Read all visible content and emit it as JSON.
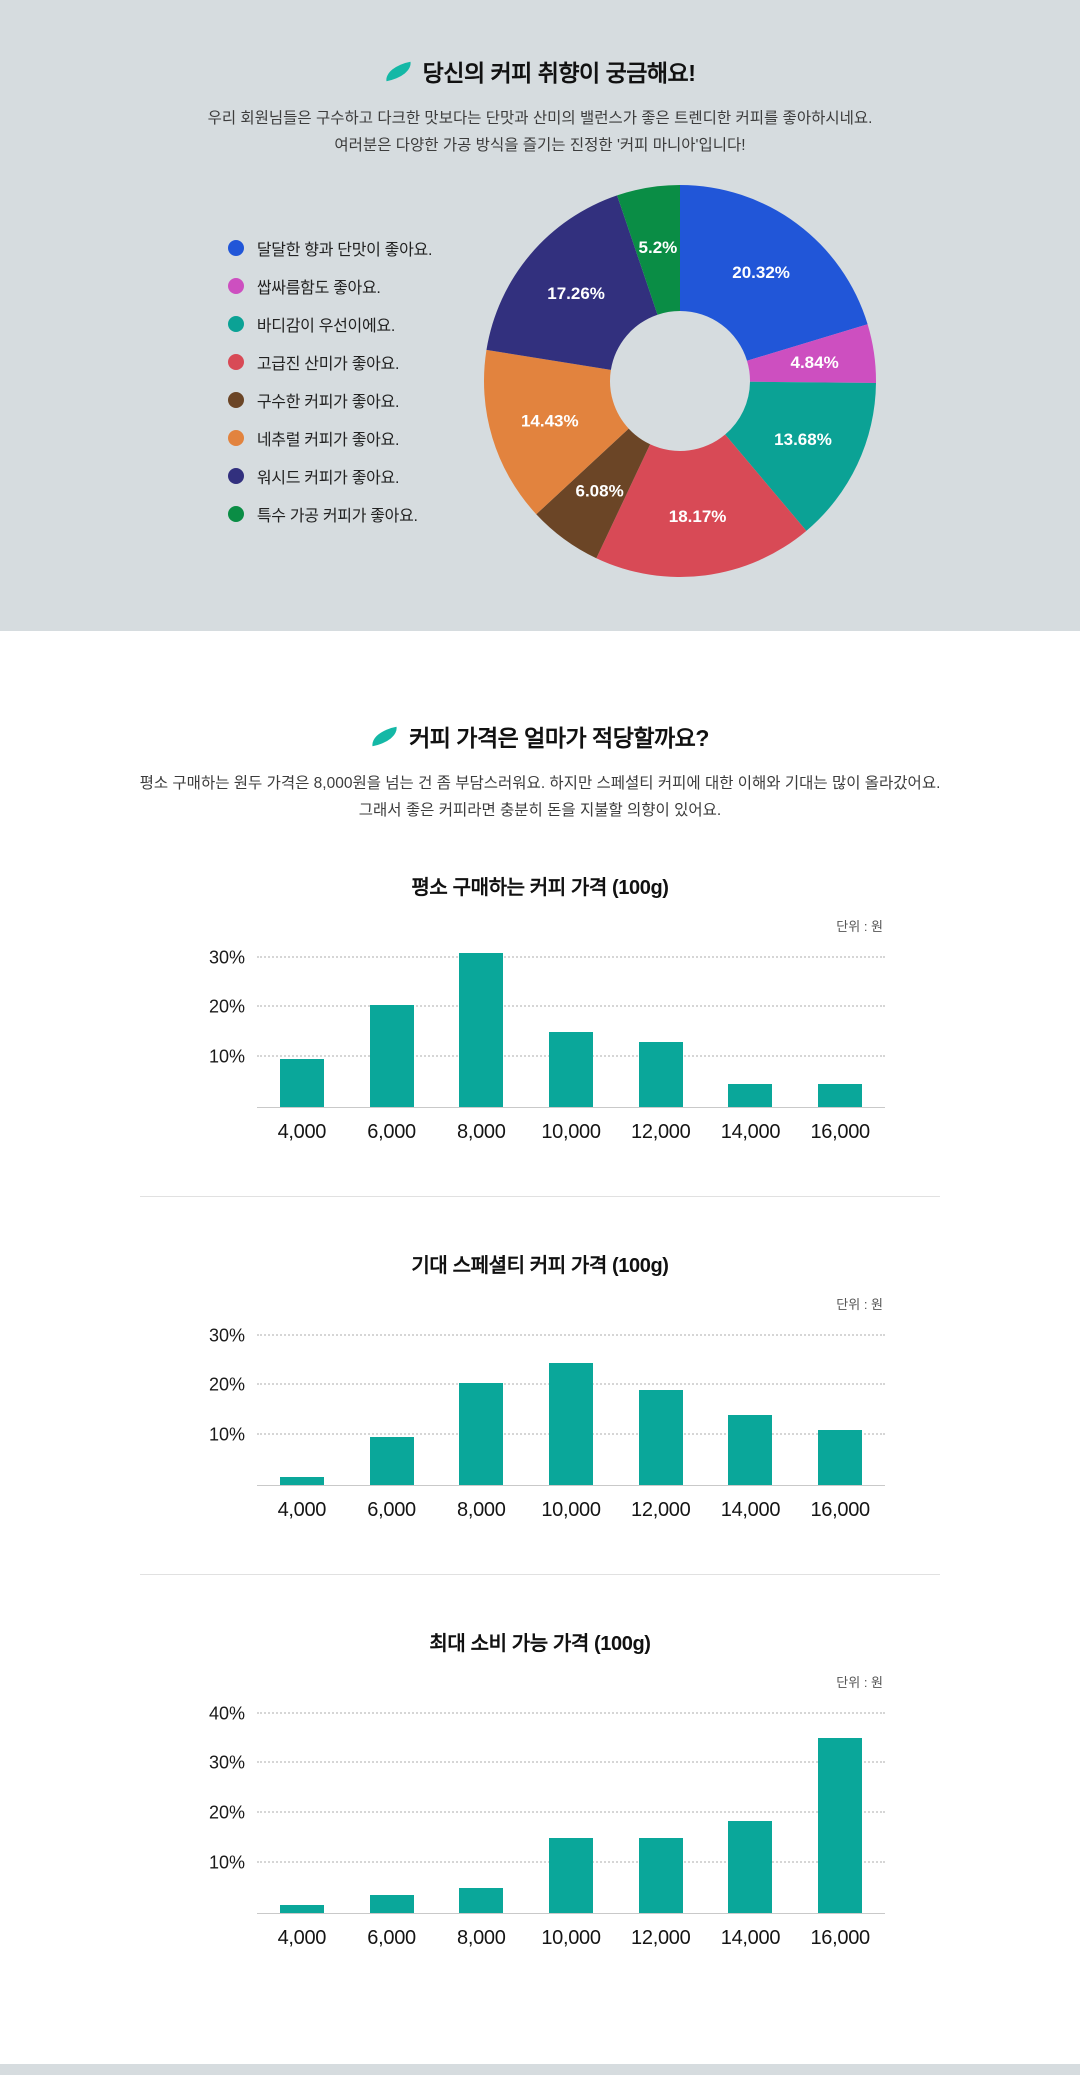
{
  "accent_color": "#14b8a6",
  "taste": {
    "title": "당신의 커피 취향이 궁금해요!",
    "desc_lines": [
      "우리 회원님들은 구수하고 다크한 맛보다는 단맛과 산미의 밸런스가 좋은 트렌디한 커피를 좋아하시네요.",
      "여러분은 다양한 가공 방식을 즐기는 진정한 '커피 마니아'입니다!"
    ]
  },
  "price": {
    "title": "커피 가격은 얼마가 적당할까요?",
    "desc_lines": [
      "평소 구매하는 원두 가격은 8,000원을 넘는 건 좀 부담스러워요. 하지만 스페셜티 커피에 대한 이해와 기대는 많이 올라갔어요.",
      "그래서 좋은 커피라면 충분히 돈을 지불할 의향이 있어요."
    ]
  },
  "chart_data": [
    {
      "type": "pie",
      "donut": true,
      "title": "당신의 커피 취향이 궁금해요!",
      "legend_position": "left",
      "slices": [
        {
          "label": "달달한 향과 단맛이 좋아요.",
          "value": 20.32,
          "display": "20.32%",
          "color": "#2156d8"
        },
        {
          "label": "쌉싸름함도 좋아요.",
          "value": 4.84,
          "display": "4.84%",
          "color": "#cd4fc0"
        },
        {
          "label": "바디감이 우선이에요.",
          "value": 13.68,
          "display": "13.68%",
          "color": "#0ba295"
        },
        {
          "label": "고급진 산미가 좋아요.",
          "value": 18.17,
          "display": "18.17%",
          "color": "#d84a56"
        },
        {
          "label": "구수한 커피가 좋아요.",
          "value": 6.08,
          "display": "6.08%",
          "color": "#6b4526"
        },
        {
          "label": "네추럴 커피가 좋아요.",
          "value": 14.43,
          "display": "14.43%",
          "color": "#e2833e"
        },
        {
          "label": "워시드 커피가 좋아요.",
          "value": 17.26,
          "display": "17.26%",
          "color": "#32307e"
        },
        {
          "label": "특수 가공 커피가 좋아요.",
          "value": 5.2,
          "display": "5.2%",
          "color": "#0a8d45"
        }
      ]
    },
    {
      "type": "bar",
      "title": "평소 구매하는 커피 가격 (100g)",
      "unit": "단위 : 원",
      "categories": [
        "4,000",
        "6,000",
        "8,000",
        "10,000",
        "12,000",
        "14,000",
        "16,000"
      ],
      "values": [
        9.5,
        20.5,
        31,
        15,
        13,
        4.5,
        4.5
      ],
      "yticks": [
        10,
        20,
        30
      ],
      "ymax": 33,
      "bar_color": "#0aa79a",
      "grid": "dotted"
    },
    {
      "type": "bar",
      "title": "기대 스페셜티 커피 가격 (100g)",
      "unit": "단위 : 원",
      "categories": [
        "4,000",
        "6,000",
        "8,000",
        "10,000",
        "12,000",
        "14,000",
        "16,000"
      ],
      "values": [
        1.5,
        9.5,
        20.5,
        24.5,
        19,
        14,
        11
      ],
      "yticks": [
        10,
        20,
        30
      ],
      "ymax": 33,
      "bar_color": "#0aa79a",
      "grid": "dotted"
    },
    {
      "type": "bar",
      "title": "최대 소비 가능 가격 (100g)",
      "unit": "단위 : 원",
      "categories": [
        "4,000",
        "6,000",
        "8,000",
        "10,000",
        "12,000",
        "14,000",
        "16,000"
      ],
      "values": [
        1.5,
        3.5,
        5,
        15,
        15,
        18.5,
        35
      ],
      "yticks": [
        10,
        20,
        30,
        40
      ],
      "ymax": 43,
      "bar_color": "#0aa79a",
      "grid": "dotted"
    }
  ]
}
